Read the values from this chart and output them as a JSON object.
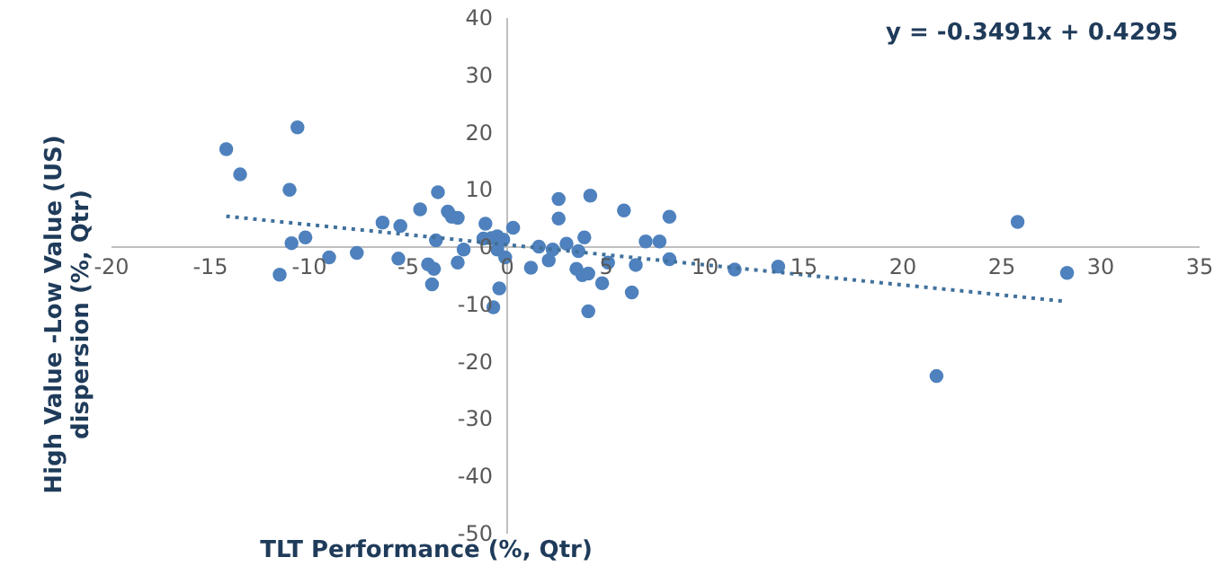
{
  "chart_data": {
    "type": "scatter",
    "xlabel": "TLT Performance (%, Qtr)",
    "ylabel": "High Value -Low Value (US) dispersion (%, Qtr)",
    "annotations": [
      "y = -0.3491x + 0.4295"
    ],
    "xlim": [
      -20,
      35
    ],
    "xticks": [
      -20,
      -15,
      -10,
      -5,
      0,
      5,
      10,
      15,
      20,
      25,
      30,
      35
    ],
    "ylim": [
      -50,
      40
    ],
    "yticks": [
      -50,
      -40,
      -30,
      -20,
      -10,
      0,
      10,
      20,
      30,
      40
    ],
    "grid": false,
    "series": [
      {
        "color": "#4e81bd",
        "marker": "circle",
        "x": [
          -14.2,
          -13.5,
          -10.6,
          -11.0,
          -10.9,
          -10.2,
          -11.5,
          -9.0,
          -7.6,
          -6.3,
          -5.4,
          -5.5,
          -4.4,
          -3.5,
          -3.6,
          -4.0,
          -3.7,
          -3.8,
          -3.0,
          -2.8,
          -2.5,
          -2.5,
          -2.2,
          -1.1,
          -1.2,
          -0.8,
          -0.5,
          -0.2,
          -0.5,
          -0.1,
          -0.4,
          -0.7,
          0.3,
          1.2,
          1.6,
          2.1,
          2.3,
          2.6,
          2.6,
          3.0,
          3.6,
          3.9,
          3.5,
          3.8,
          4.1,
          4.2,
          4.1,
          4.8,
          5.1,
          5.9,
          6.3,
          6.5,
          7.0,
          7.7,
          8.2,
          8.2,
          11.5,
          13.7,
          25.8,
          28.3,
          21.7
        ],
        "values": [
          17.1,
          12.7,
          20.9,
          10.0,
          0.7,
          1.7,
          -4.8,
          -1.8,
          -1.0,
          4.3,
          3.7,
          -2.0,
          6.6,
          9.6,
          1.2,
          -3.0,
          -3.8,
          -6.5,
          6.2,
          5.3,
          5.1,
          -2.7,
          -0.4,
          4.1,
          1.5,
          1.6,
          1.9,
          1.3,
          -0.4,
          -1.8,
          -7.2,
          -10.5,
          3.4,
          -3.6,
          0.1,
          -2.3,
          -0.4,
          8.4,
          5.0,
          0.6,
          -0.7,
          1.7,
          -3.8,
          -4.9,
          -4.6,
          9.0,
          -11.2,
          -6.3,
          -2.7,
          6.4,
          -7.9,
          -3.1,
          1.0,
          1.0,
          5.3,
          -2.1,
          -3.9,
          -3.4,
          4.4,
          -4.5,
          -22.5
        ]
      },
      {
        "type": "line",
        "color": "#41719c",
        "line_style": "dotted",
        "marker": "none",
        "x": [
          -14.2,
          28.3
        ],
        "values": [
          5.4,
          -9.5
        ]
      }
    ]
  }
}
